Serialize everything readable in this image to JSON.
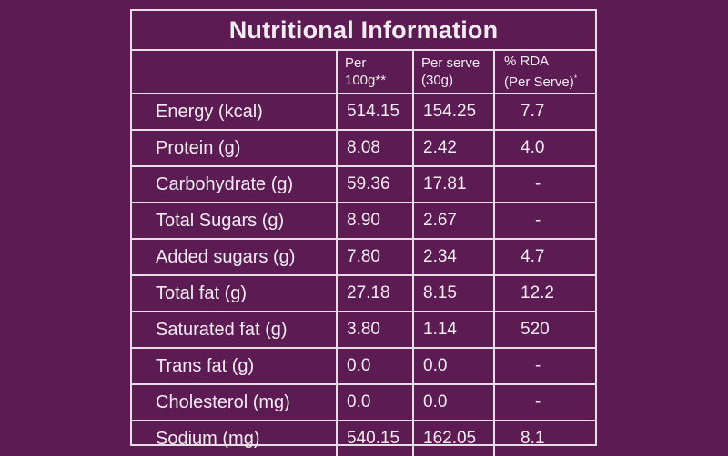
{
  "title": "Nutritional Information",
  "headers": {
    "nutrient": "",
    "per100_line1": "Per",
    "per100_line2": "100g**",
    "serve_line1": "Per serve",
    "serve_line2": "(30g)",
    "rda_line1": "% RDA",
    "rda_line2": "(Per Serve)",
    "rda_mark": "*"
  },
  "rows": [
    {
      "nutrient": "Energy (kcal)",
      "per100": "514.15",
      "per_serve": "154.25",
      "rda": "7.7"
    },
    {
      "nutrient": "Protein (g)",
      "per100": "8.08",
      "per_serve": "2.42",
      "rda": "4.0"
    },
    {
      "nutrient": "Carbohydrate (g)",
      "per100": "59.36",
      "per_serve": "17.81",
      "rda": "-"
    },
    {
      "nutrient": "Total Sugars (g)",
      "per100": "8.90",
      "per_serve": "2.67",
      "rda": "-"
    },
    {
      "nutrient": "Added sugars (g)",
      "per100": "7.80",
      "per_serve": "2.34",
      "rda": "4.7"
    },
    {
      "nutrient": "Total fat (g)",
      "per100": "27.18",
      "per_serve": "8.15",
      "rda": "12.2"
    },
    {
      "nutrient": "Saturated fat (g)",
      "per100": "3.80",
      "per_serve": "1.14",
      "rda": "520"
    },
    {
      "nutrient": "Trans fat (g)",
      "per100": "0.0",
      "per_serve": "0.0",
      "rda": "-"
    },
    {
      "nutrient": "Cholesterol (mg)",
      "per100": "0.0",
      "per_serve": "0.0",
      "rda": "-"
    },
    {
      "nutrient": "Sodium (mg)",
      "per100": "540.15",
      "per_serve": "162.05",
      "rda": "8.1"
    }
  ],
  "colors": {
    "background": "#5d1b54",
    "text": "#f2ecf1",
    "border": "#e6dde6"
  }
}
